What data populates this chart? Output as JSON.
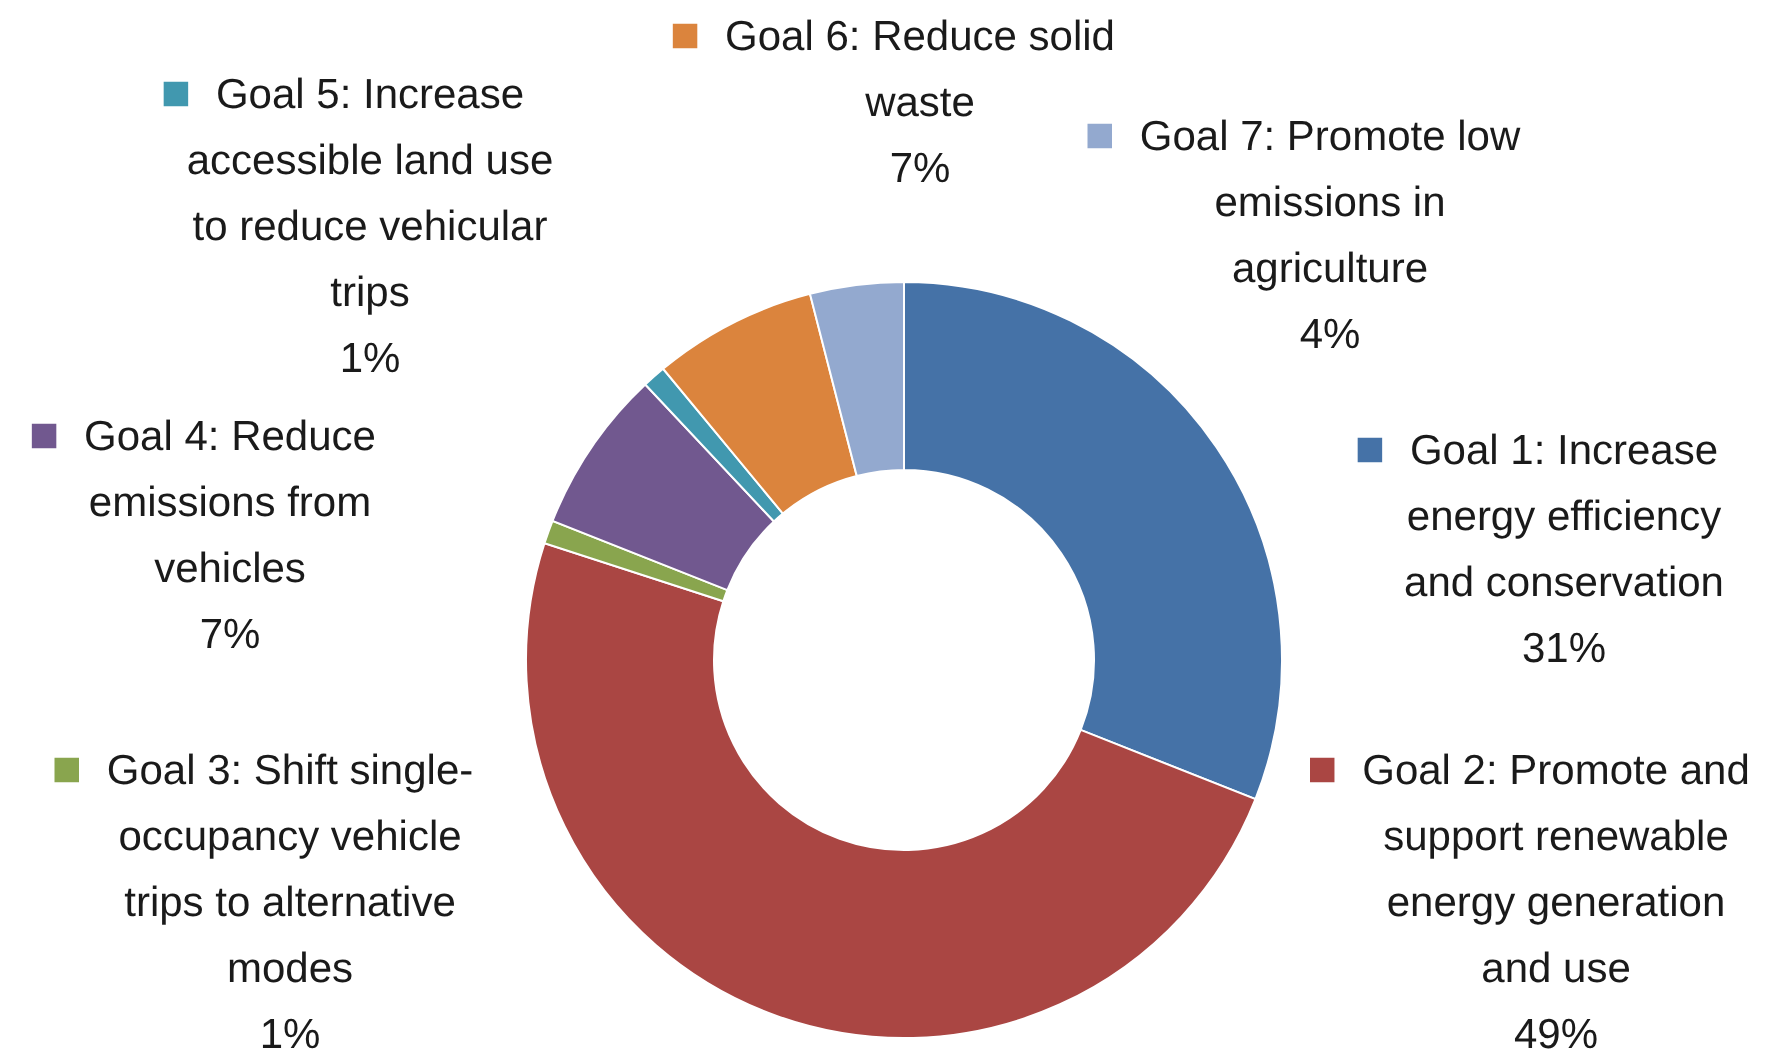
{
  "chart_data": {
    "type": "donut",
    "categories": [
      "Goal 1: Increase energy efficiency and conservation",
      "Goal 2: Promote and support renewable energy generation and use",
      "Goal 3: Shift single-occupancy vehicle trips to alternative modes",
      "Goal 4: Reduce emissions from vehicles",
      "Goal 5: Increase accessible land use to reduce vehicular trips",
      "Goal 6: Reduce solid waste",
      "Goal 7: Promote low emissions in agriculture"
    ],
    "values": [
      31,
      49,
      1,
      7,
      1,
      7,
      4
    ],
    "colors": [
      "#4572a7",
      "#aa4643",
      "#89a54e",
      "#71588f",
      "#4198af",
      "#db843d",
      "#93a9cf"
    ],
    "value_labels": [
      "31%",
      "49%",
      "1%",
      "7%",
      "1%",
      "7%",
      "4%"
    ],
    "legend": "right"
  }
}
